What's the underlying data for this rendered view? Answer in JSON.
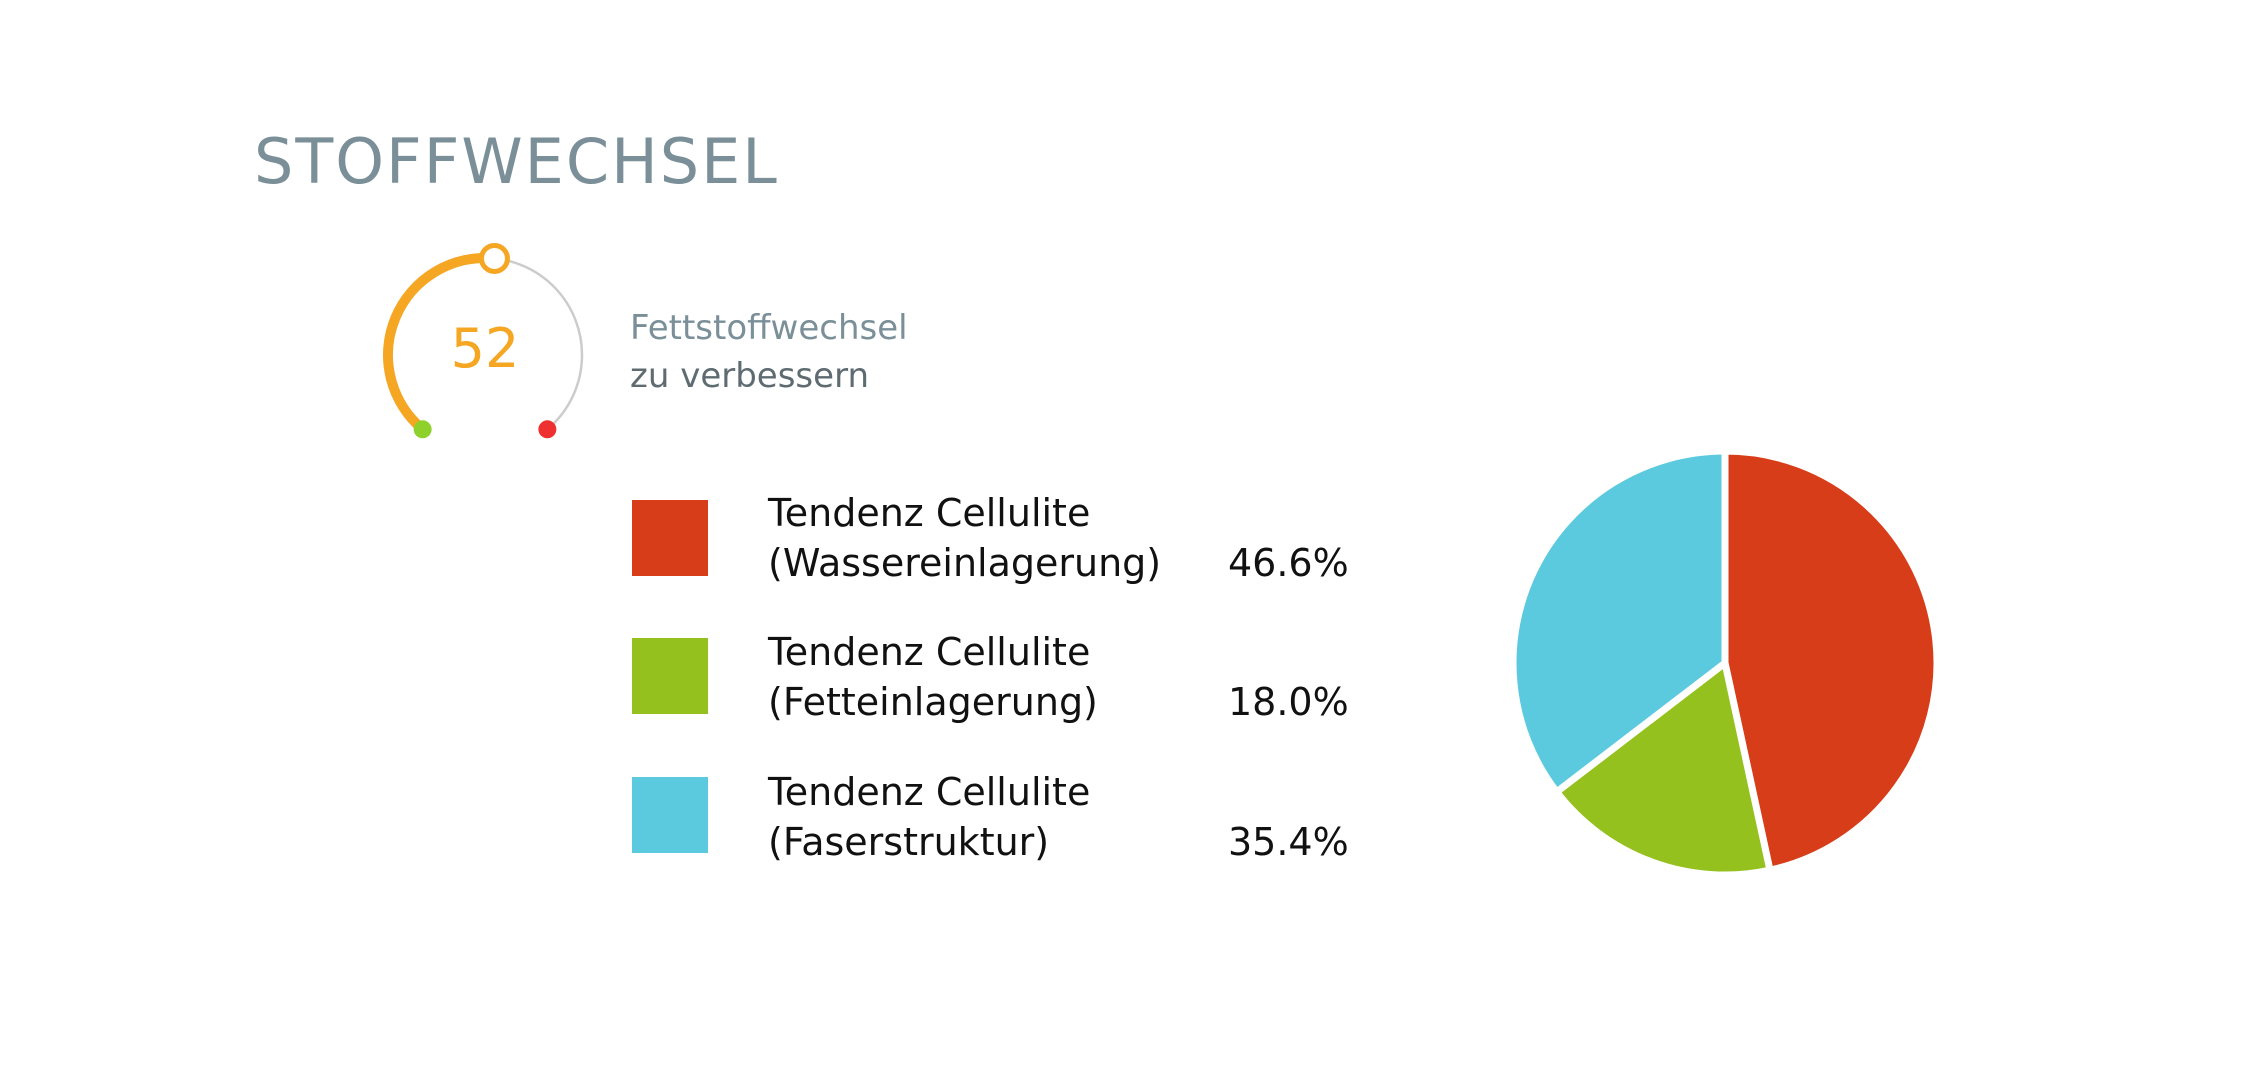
{
  "title": "STOFFWECHSEL",
  "gauge": {
    "value": "52",
    "label_line1": "Fettstoffwechsel",
    "label_line2": "zu verbessern",
    "fraction": 0.52,
    "fill_color": "#f5a623",
    "track_color": "#cccccc",
    "start_dot_color": "#8dd12a",
    "end_dot_color": "#ee3030"
  },
  "chart_data": {
    "type": "pie",
    "title": "",
    "slices": [
      {
        "line1": "Tendenz Cellulite",
        "line2": "(Wassereinlagerung)",
        "value": 46.6,
        "value_label": "46.6%",
        "color": "#d83d1a"
      },
      {
        "line1": "Tendenz Cellulite",
        "line2": "(Fetteinlagerung)",
        "value": 18.0,
        "value_label": "18.0%",
        "color": "#95c11f"
      },
      {
        "line1": "Tendenz Cellulite",
        "line2": "(Faserstruktur)",
        "value": 35.4,
        "value_label": "35.4%",
        "color": "#5bc9de"
      }
    ],
    "legend_position": "left"
  }
}
